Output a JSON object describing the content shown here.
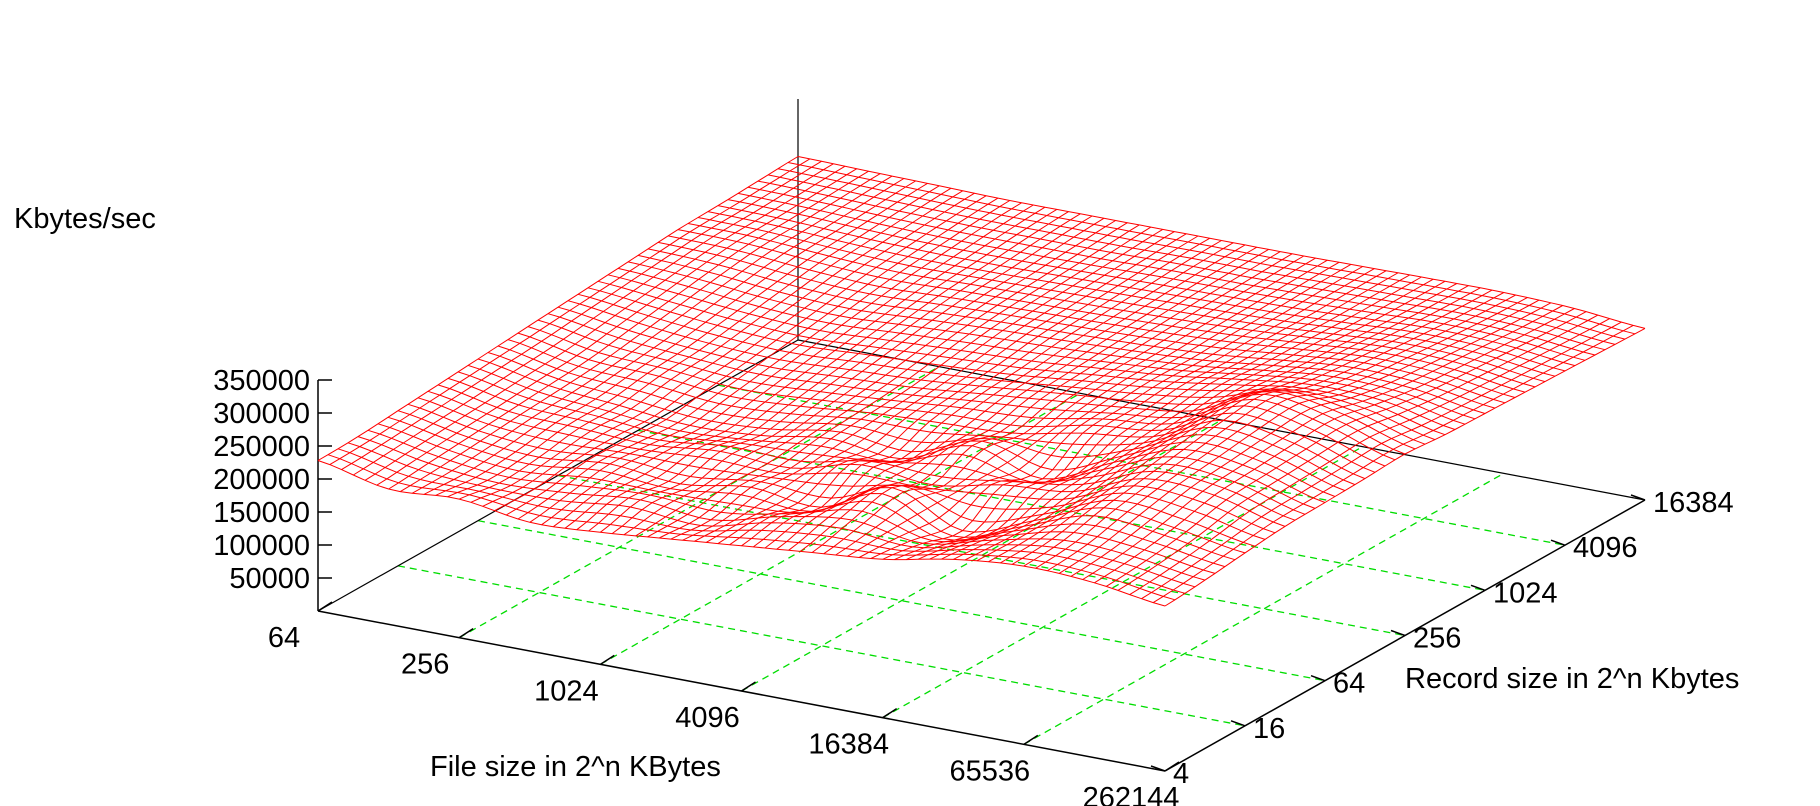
{
  "chart_data": {
    "type": "surface",
    "zlabel": "Kbytes/sec",
    "xlabel": "File size in 2^n KBytes",
    "ylabel": "Record size in 2^n Kbytes",
    "x_ticks": [
      "64",
      "256",
      "1024",
      "4096",
      "16384",
      "65536",
      "262144"
    ],
    "y_ticks": [
      "4",
      "16",
      "64",
      "256",
      "1024",
      "4096",
      "16384"
    ],
    "z_ticks": [
      "50000",
      "100000",
      "150000",
      "200000",
      "250000",
      "300000",
      "350000"
    ],
    "zlim": [
      0,
      350000
    ],
    "grid": true,
    "colors": {
      "surface": "#ff0000",
      "grid": "#00dd00",
      "axes": "#000000"
    },
    "series": [
      {
        "x_log2": [
          6,
          7,
          8,
          9,
          10,
          11,
          12,
          13,
          14,
          15,
          16,
          17,
          18
        ],
        "rows": [
          {
            "y_log2": 2,
            "values": [
              228000,
              205000,
              210000,
              195000,
              200000,
              210000,
              220000,
              230000,
              240000,
              260000,
              270000,
              265000,
              250000
            ]
          },
          {
            "y_log2": 3,
            "values": [
              230000,
              210000,
              200000,
              205000,
              215000,
              205000,
              230000,
              245000,
              230000,
              255000,
              275000,
              270000,
              255000
            ]
          },
          {
            "y_log2": 4,
            "values": [
              235000,
              215000,
              205000,
              215000,
              205000,
              220000,
              210000,
              260000,
              215000,
              250000,
              290000,
              280000,
              262000
            ]
          },
          {
            "y_log2": 5,
            "values": [
              240000,
              220000,
              215000,
              210000,
              220000,
              215000,
              240000,
              230000,
              250000,
              260000,
              300000,
              295000,
              268000
            ]
          },
          {
            "y_log2": 6,
            "values": [
              245000,
              225000,
              215000,
              205000,
              210000,
              225000,
              215000,
              255000,
              225000,
              270000,
              310000,
              300000,
              270000
            ]
          },
          {
            "y_log2": 7,
            "values": [
              250000,
              230000,
              225000,
              215000,
              220000,
              230000,
              235000,
              240000,
              260000,
              275000,
              320000,
              305000,
              272000
            ]
          },
          {
            "y_log2": 8,
            "values": [
              255000,
              240000,
              230000,
              225000,
              230000,
              235000,
              245000,
              255000,
              265000,
              280000,
              325000,
              308000,
              275000
            ]
          },
          {
            "y_log2": 9,
            "values": [
              260000,
              250000,
              240000,
              235000,
              240000,
              245000,
              250000,
              260000,
              270000,
              285000,
              300000,
              295000,
              270000
            ]
          },
          {
            "y_log2": 10,
            "values": [
              265000,
              260000,
              250000,
              245000,
              250000,
              255000,
              258000,
              262000,
              268000,
              280000,
              290000,
              285000,
              268000
            ]
          },
          {
            "y_log2": 11,
            "values": [
              270000,
              268000,
              260000,
              255000,
              258000,
              260000,
              262000,
              265000,
              270000,
              278000,
              285000,
              280000,
              266000
            ]
          },
          {
            "y_log2": 12,
            "values": [
              272000,
              270000,
              265000,
              262000,
              262000,
              264000,
              266000,
              268000,
              270000,
              275000,
              280000,
              276000,
              264000
            ]
          },
          {
            "y_log2": 13,
            "values": [
              275000,
              273000,
              270000,
              268000,
              268000,
              268000,
              270000,
              270000,
              272000,
              274000,
              276000,
              272000,
              262000
            ]
          },
          {
            "y_log2": 14,
            "values": [
              278000,
              276000,
              274000,
              272000,
              272000,
              272000,
              272000,
              272000,
              273000,
              274000,
              274000,
              270000,
              260000
            ]
          }
        ]
      }
    ]
  }
}
